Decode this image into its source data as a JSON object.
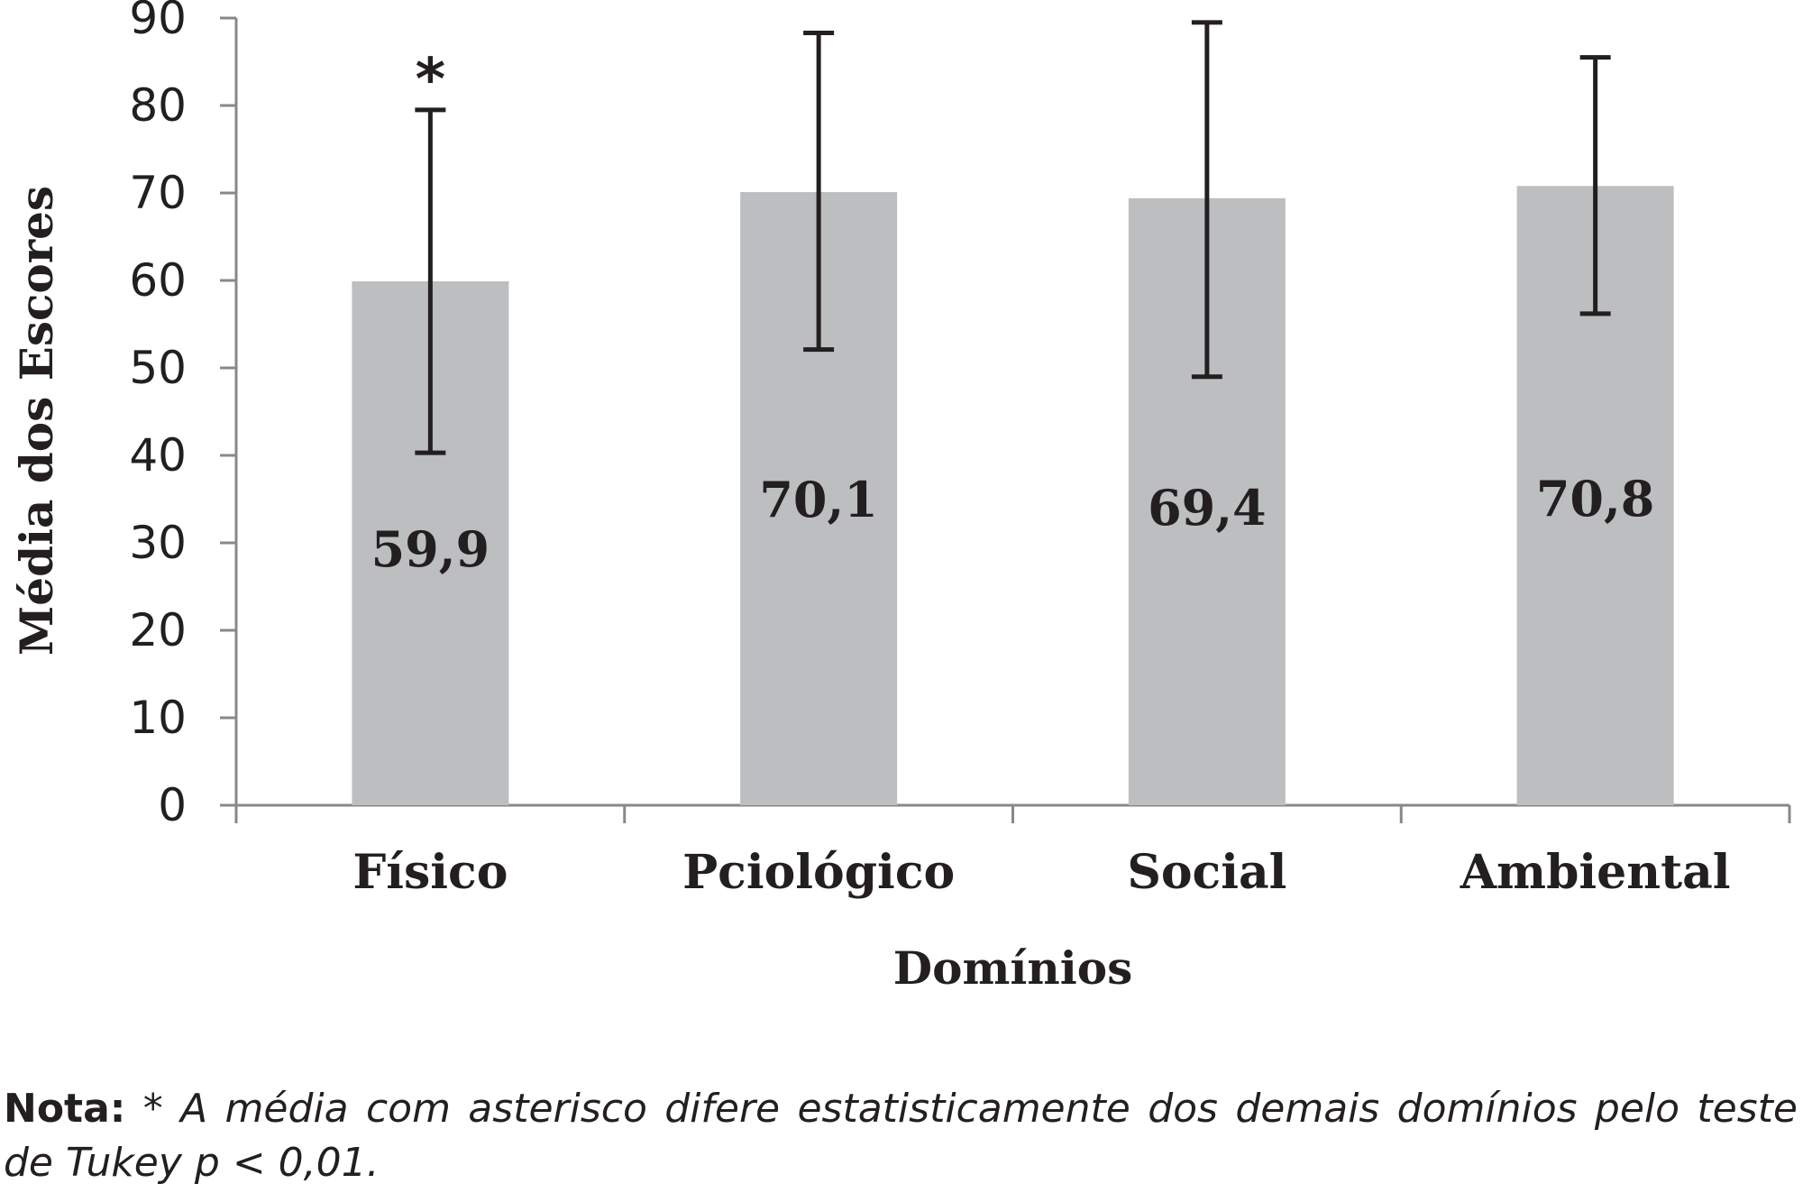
{
  "chart_data": {
    "type": "bar",
    "categories": [
      "Físico",
      "Pciológico",
      "Social",
      "Ambiental"
    ],
    "values": [
      59.9,
      70.1,
      69.4,
      70.8
    ],
    "value_labels": [
      "59,9",
      "70,1",
      "69,4",
      "70,8"
    ],
    "error_upper": [
      79.5,
      88.3,
      89.5,
      85.5
    ],
    "error_lower": [
      40.3,
      52.1,
      49.0,
      56.2
    ],
    "markers": [
      "*",
      "",
      "",
      ""
    ],
    "xlabel": "Domínios",
    "ylabel": "Média dos Escores",
    "ylim": [
      0,
      90
    ],
    "yticks": [
      0,
      10,
      20,
      30,
      40,
      50,
      60,
      70,
      80,
      90
    ],
    "ytick_labels": [
      "0",
      "10",
      "20",
      "30",
      "40",
      "50",
      "60",
      "70",
      "80",
      "90"
    ],
    "bar_color": "#bcbec0",
    "errorbar_color": "#231f20",
    "axis_color": "#888888",
    "grid": false,
    "legend": "none"
  },
  "footnote": {
    "label": "Nota:",
    "text": " * A média com asterisco difere estatisticamente dos demais domínios pelo teste de Tukey p < 0,01."
  }
}
